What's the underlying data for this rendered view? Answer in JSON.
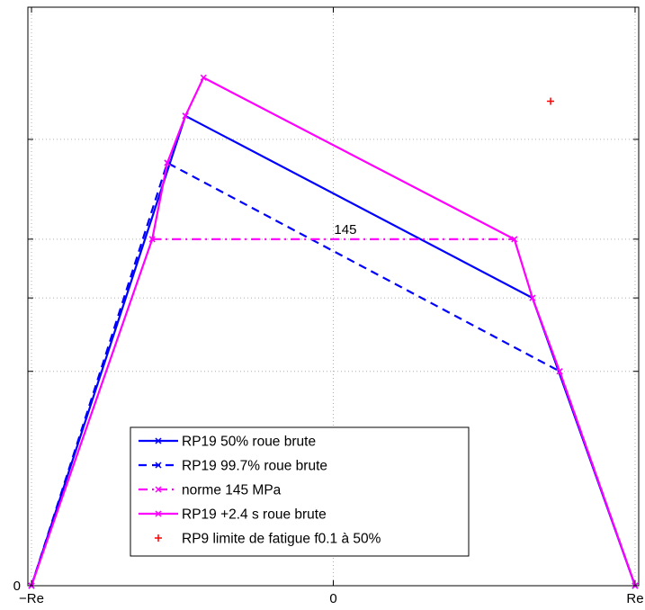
{
  "chart_data": {
    "type": "line",
    "title": "",
    "xlabel": "",
    "ylabel": "",
    "xlim": [
      -1.012,
      1.012
    ],
    "ylim": [
      0,
      197
    ],
    "grid": true,
    "x_ticks": [
      {
        "value": -1,
        "label": "−Re"
      },
      {
        "value": 0,
        "label": "0"
      },
      {
        "value": 1,
        "label": "Re"
      }
    ],
    "y_ticks": [
      {
        "value": 0,
        "label": "0"
      },
      {
        "value": 73,
        "label": ""
      },
      {
        "value": 98,
        "label": ""
      },
      {
        "value": 118,
        "label": ""
      },
      {
        "value": 152,
        "label": ""
      }
    ],
    "legend_position": "bottom-left",
    "series": [
      {
        "name": "RP19 50% roue brute",
        "color": "#0000ff",
        "style": "solid",
        "marker": "x",
        "points": [
          [
            -1,
            0
          ],
          [
            -0.49,
            160
          ],
          [
            0.66,
            98
          ],
          [
            1,
            0
          ]
        ]
      },
      {
        "name": "RP19 99.7% roue brute",
        "color": "#0000ff",
        "style": "dashed",
        "marker": "x",
        "points": [
          [
            -1,
            0
          ],
          [
            -0.55,
            144
          ],
          [
            0.75,
            73
          ],
          [
            1,
            0
          ]
        ]
      },
      {
        "name": "norme 145 MPa",
        "color": "#ff00ff",
        "style": "dashdot",
        "marker": "x",
        "points": [
          [
            -0.6,
            118
          ],
          [
            0.6,
            118
          ]
        ]
      },
      {
        "name": "RP19 +2.4 s roue brute",
        "color": "#ff00ff",
        "style": "solid",
        "marker": "x",
        "points": [
          [
            -1,
            0
          ],
          [
            -0.6,
            118
          ],
          [
            -0.55,
            144
          ],
          [
            -0.49,
            160
          ],
          [
            -0.43,
            173
          ],
          [
            0.6,
            118
          ],
          [
            0.66,
            98
          ],
          [
            0.75,
            73
          ],
          [
            1,
            0
          ]
        ]
      },
      {
        "name": "RP9 limite de fatigue f0.1 à 50%",
        "color": "#ff0000",
        "style": "none",
        "marker": "+",
        "points": [
          [
            0.72,
            165
          ]
        ]
      }
    ],
    "annotations": [
      {
        "text": "145",
        "x": 0.04,
        "y": 118
      }
    ]
  }
}
